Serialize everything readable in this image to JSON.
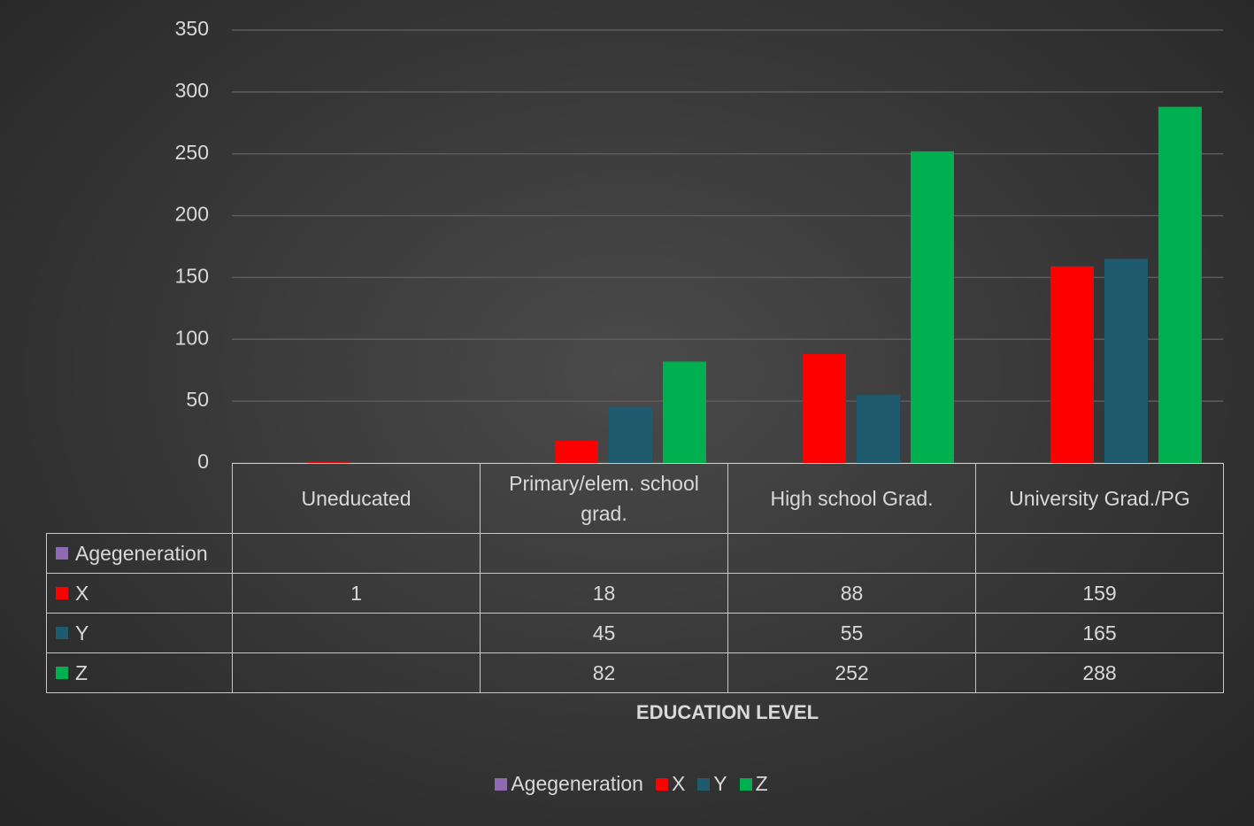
{
  "chart_data": {
    "type": "bar",
    "x_label": "EDUCATION LEVEL",
    "categories": [
      "Uneducated",
      "Primary/elem. school grad.",
      "High school Grad.",
      "University Grad./PG"
    ],
    "series": [
      {
        "name": "Agegeneration",
        "color": "#8e6bb0",
        "values": [
          null,
          null,
          null,
          null
        ]
      },
      {
        "name": "X",
        "color": "#ff0000",
        "values": [
          1,
          18,
          88,
          159
        ]
      },
      {
        "name": "Y",
        "color": "#1f5b6e",
        "values": [
          null,
          45,
          55,
          165
        ]
      },
      {
        "name": "Z",
        "color": "#00b050",
        "values": [
          null,
          82,
          252,
          288
        ]
      }
    ],
    "ylim": [
      0,
      350
    ],
    "yticks": [
      0,
      50,
      100,
      150,
      200,
      250,
      300,
      350
    ],
    "grid": true,
    "legend": "bottom",
    "data_table": true
  }
}
